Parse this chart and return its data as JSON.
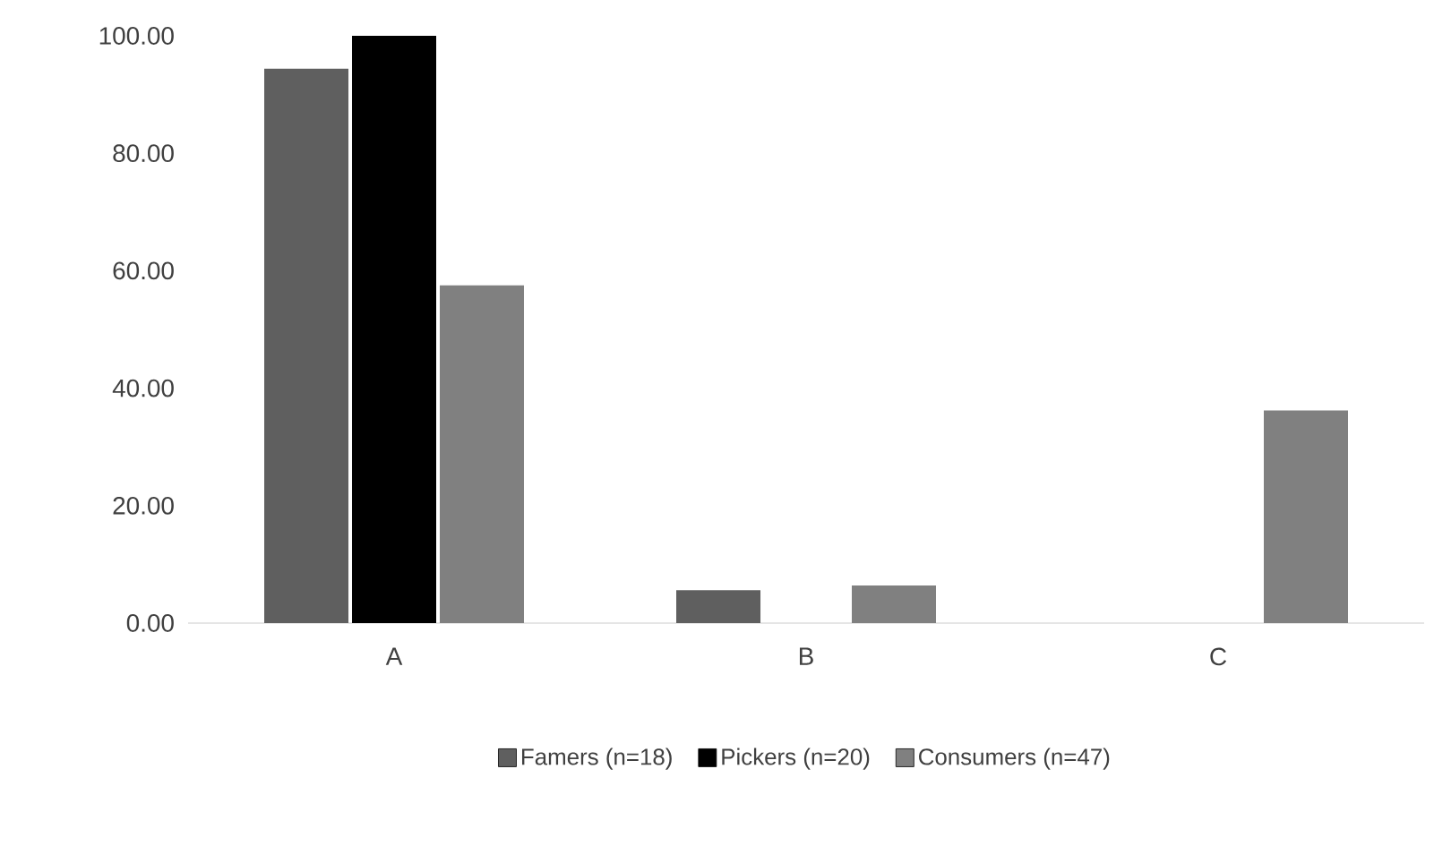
{
  "chart_data": {
    "type": "bar",
    "categories": [
      "A",
      "B",
      "C"
    ],
    "series": [
      {
        "name": "Famers (n=18)",
        "color": "#5f5f5f",
        "values": [
          94.4,
          5.6,
          0
        ]
      },
      {
        "name": "Pickers (n=20)",
        "color": "#000000",
        "values": [
          100,
          0,
          0
        ]
      },
      {
        "name": "Consumers (n=47)",
        "color": "#808080",
        "values": [
          57.5,
          6.4,
          36.2
        ]
      }
    ],
    "ylim": [
      0,
      100
    ],
    "yticks": [
      {
        "value": 0,
        "label": "0.00"
      },
      {
        "value": 20,
        "label": "20.00"
      },
      {
        "value": 40,
        "label": "40.00"
      },
      {
        "value": 60,
        "label": "60.00"
      },
      {
        "value": 80,
        "label": "80.00"
      },
      {
        "value": 100,
        "label": "100.00"
      }
    ],
    "grid": false,
    "legend": "bottom"
  }
}
